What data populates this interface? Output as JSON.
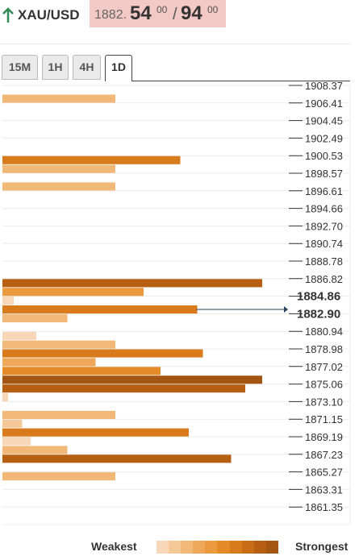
{
  "header": {
    "symbol": "XAU/USD",
    "price_prefix": "1882.",
    "bid_big": "54",
    "bid_sup": "00",
    "slash": "/",
    "ask_big": "94",
    "ask_sup": "00",
    "arrow_color": "#2e8b57",
    "box_color": "#f2c9c4"
  },
  "tabs": [
    {
      "label": "15M",
      "active": false
    },
    {
      "label": "1H",
      "active": false
    },
    {
      "label": "4H",
      "active": false
    },
    {
      "label": "1D",
      "active": true
    }
  ],
  "chart_data": {
    "type": "bar",
    "orientation": "horizontal",
    "description_levels": [
      "1908.37",
      "1906.41",
      "1904.45",
      "1902.49",
      "1900.53",
      "1898.57",
      "1896.61",
      "1894.66",
      "1892.70",
      "1890.74",
      "1888.78",
      "1886.82",
      "1884.86",
      "1882.90",
      "1880.94",
      "1878.98",
      "1877.02",
      "1875.06",
      "1873.10",
      "1871.15",
      "1869.19",
      "1867.23",
      "1865.27",
      "1863.31",
      "1861.35"
    ],
    "highlight_labels": [
      "1884.86",
      "1882.90"
    ],
    "rows": [
      {
        "value": 0
      },
      {
        "value": 0.4,
        "level": 2
      },
      {
        "value": 0
      },
      {
        "value": 0
      },
      {
        "value": 0
      },
      {
        "value": 0
      },
      {
        "value": 0
      },
      {
        "value": 0
      },
      {
        "value": 0.63,
        "level": 6
      },
      {
        "value": 0.4,
        "level": 2
      },
      {
        "value": 0
      },
      {
        "value": 0.4,
        "level": 2
      },
      {
        "value": 0
      },
      {
        "value": 0
      },
      {
        "value": 0
      },
      {
        "value": 0
      },
      {
        "value": 0
      },
      {
        "value": 0
      },
      {
        "value": 0
      },
      {
        "value": 0
      },
      {
        "value": 0
      },
      {
        "value": 0
      },
      {
        "value": 0.92,
        "level": 8
      },
      {
        "value": 0.5,
        "level": 4
      },
      {
        "value": 0.04,
        "level": 0
      },
      {
        "value": 0.69,
        "level": 6
      },
      {
        "value": 0.23,
        "level": 2
      },
      {
        "value": 0
      },
      {
        "value": 0.12,
        "level": 0
      },
      {
        "value": 0.4,
        "level": 2
      },
      {
        "value": 0.71,
        "level": 6
      },
      {
        "value": 0.33,
        "level": 3
      },
      {
        "value": 0.56,
        "level": 5
      },
      {
        "value": 0.92,
        "level": 9
      },
      {
        "value": 0.86,
        "level": 8
      },
      {
        "value": 0.02,
        "level": 0
      },
      {
        "value": 0
      },
      {
        "value": 0.4,
        "level": 2
      },
      {
        "value": 0.07,
        "level": 1
      },
      {
        "value": 0.66,
        "level": 6
      },
      {
        "value": 0.1,
        "level": 0
      },
      {
        "value": 0.23,
        "level": 2
      },
      {
        "value": 0.81,
        "level": 8
      },
      {
        "value": 0
      },
      {
        "value": 0.4,
        "level": 2
      },
      {
        "value": 0
      },
      {
        "value": 0
      },
      {
        "value": 0
      },
      {
        "value": 0
      },
      {
        "value": 0
      }
    ],
    "current_price": 1882.9
  },
  "legend": {
    "weak_label": "Weakest",
    "strong_label": "Strongest",
    "scale_colors": [
      "#f8d7b8",
      "#f5c898",
      "#f2b878",
      "#efa85a",
      "#eb9a40",
      "#e58a28",
      "#d97b1c",
      "#c96c16",
      "#b65f13",
      "#a35511"
    ]
  }
}
